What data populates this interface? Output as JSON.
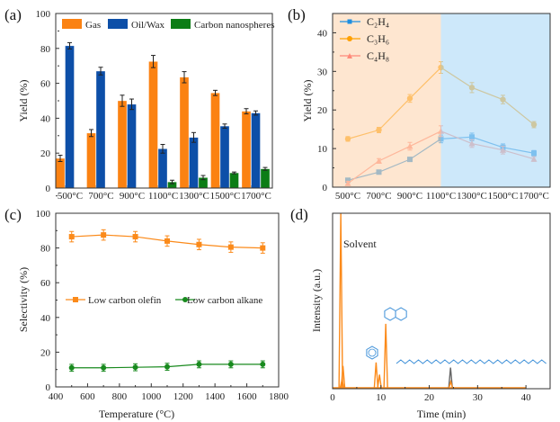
{
  "chart_data": [
    {
      "panel": "(a)",
      "type": "bar",
      "categories": [
        "500°C",
        "700°C",
        "900°C",
        "1100°C",
        "1300°C",
        "1500°C",
        "1700°C"
      ],
      "series": [
        {
          "name": "Gas",
          "color": "#fb8212",
          "values": [
            17,
            31.5,
            50,
            72.5,
            63.5,
            54.5,
            44
          ],
          "errors": [
            1.8,
            2,
            3.2,
            3.5,
            3.2,
            1.5,
            1.5
          ]
        },
        {
          "name": "Oil/Wax",
          "color": "#0d4fa8",
          "values": [
            81.5,
            67,
            48,
            22.5,
            29,
            35.5,
            43
          ],
          "errors": [
            1.8,
            2.2,
            3,
            2.5,
            2.8,
            1.2,
            1.2
          ]
        },
        {
          "name": "Carbon nanospheres",
          "color": "#0c7d16",
          "values": [
            0,
            0,
            0,
            3.5,
            6,
            8.7,
            11
          ],
          "errors": [
            0,
            0,
            0,
            1,
            1.2,
            0.5,
            0.8
          ]
        }
      ],
      "xlabel": "",
      "ylabel": "Yield (%)",
      "ylim": [
        0,
        100
      ],
      "yticks": [
        "0",
        "20",
        "40",
        "60",
        "80",
        "100"
      ],
      "legend": "top"
    },
    {
      "panel": "(b)",
      "type": "line",
      "categories": [
        "500°C",
        "700°C",
        "900°C",
        "1100°C",
        "1300°C",
        "1500°C",
        "1700°C"
      ],
      "series": [
        {
          "name": "C₂H₄",
          "color": "#1f8fe0",
          "values": [
            1.8,
            3.9,
            7.2,
            12.5,
            13,
            10.3,
            8.8
          ],
          "errors": [
            0.4,
            0.4,
            0.5,
            1,
            1,
            0.9,
            0.7
          ]
        },
        {
          "name": "C₃H₆",
          "color": "#ffa000",
          "values": [
            12.5,
            14.8,
            23,
            31,
            25.8,
            22.7,
            16.2
          ],
          "errors": [
            0.6,
            0.7,
            1,
            1.5,
            1.3,
            1.1,
            0.8
          ]
        },
        {
          "name": "C₄H₈",
          "color": "#ff8a7a",
          "values": [
            1.0,
            6.8,
            10.6,
            14.5,
            11.3,
            9.6,
            7.3
          ],
          "errors": [
            0.5,
            0.6,
            1,
            1.4,
            1,
            1,
            0.6
          ]
        }
      ],
      "regions": [
        {
          "from": "500°C",
          "to": "1100°C",
          "color": "#fdd5b0"
        },
        {
          "from": "1100°C",
          "to": "1700°C",
          "color": "#b2dcf8"
        }
      ],
      "xlabel": "",
      "ylabel": "Yield (%)",
      "ylim": [
        0,
        45
      ],
      "yticks": [
        "0",
        "10",
        "20",
        "30",
        "40"
      ],
      "legend": "top-left"
    },
    {
      "panel": "(c)",
      "type": "line",
      "x": [
        500,
        700,
        900,
        1100,
        1300,
        1500,
        1700
      ],
      "series": [
        {
          "name": "Low carbon olefin",
          "color": "#fb8a1a",
          "marker": "square",
          "values": [
            86.5,
            87.5,
            86.5,
            84,
            82,
            80.5,
            80
          ],
          "errors": [
            3,
            3,
            3,
            3,
            3,
            3,
            3
          ]
        },
        {
          "name": "Low carbon alkane",
          "color": "#188a1e",
          "marker": "circle",
          "values": [
            11,
            11,
            11.3,
            11.6,
            13,
            13,
            13
          ],
          "errors": [
            2,
            2,
            2,
            2,
            2,
            2,
            2
          ]
        }
      ],
      "xlabel": "Temperature (°C)",
      "ylabel": "Selectivity (%)",
      "xlim": [
        400,
        1800
      ],
      "ylim": [
        0,
        100
      ],
      "xticks": [
        "400",
        "600",
        "800",
        "1000",
        "1200",
        "1400",
        "1600",
        "1800"
      ],
      "yticks": [
        "0",
        "20",
        "40",
        "60",
        "80",
        "100"
      ],
      "legend": "center"
    },
    {
      "panel": "(d)",
      "type": "line",
      "xlabel": "Time (min)",
      "ylabel": "Intensity (a.u.)",
      "xlim": [
        0,
        45
      ],
      "ylim": [
        0,
        100
      ],
      "xticks": [
        "0",
        "10",
        "20",
        "30",
        "40"
      ],
      "peaks": [
        {
          "t": 1.7,
          "h": 100,
          "color": "#fb8a1a"
        },
        {
          "t": 1.95,
          "h": 5,
          "color": "#fb8a1a"
        },
        {
          "t": 2.15,
          "h": 13,
          "color": "#fb8a1a"
        },
        {
          "t": 9.0,
          "h": 15,
          "color": "#fb8a1a"
        },
        {
          "t": 9.7,
          "h": 8,
          "color": "#fb8a1a"
        },
        {
          "t": 11.0,
          "h": 37,
          "color": "#fb8a1a"
        },
        {
          "t": 24.4,
          "h": 12,
          "color": "#666666"
        },
        {
          "t": 24.45,
          "h": 4,
          "color": "#fb8a1a"
        }
      ],
      "annotations": [
        "Solvent"
      ]
    }
  ]
}
